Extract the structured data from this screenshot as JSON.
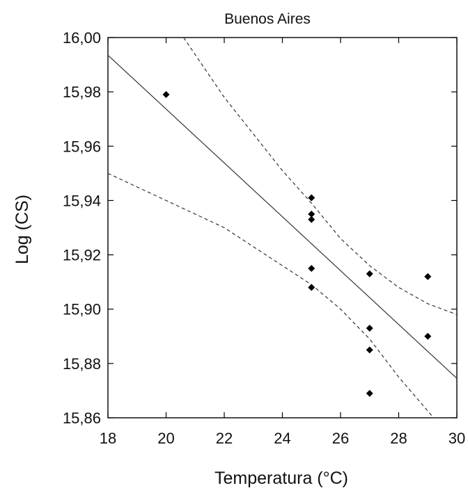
{
  "chart_data": {
    "type": "scatter",
    "title": "Buenos Aires",
    "xlabel": "Temperatura (°C)",
    "ylabel": "Log (CS)",
    "xlim": [
      18,
      30
    ],
    "ylim": [
      15.86,
      16.0
    ],
    "x_ticks": [
      18,
      20,
      22,
      24,
      26,
      28,
      30
    ],
    "x_tick_labels": [
      "18",
      "20",
      "22",
      "24",
      "26",
      "28",
      "30"
    ],
    "y_ticks": [
      15.86,
      15.88,
      15.9,
      15.92,
      15.94,
      15.96,
      15.98,
      16.0
    ],
    "y_tick_labels": [
      "15,86",
      "15,88",
      "15,90",
      "15,92",
      "15,94",
      "15,96",
      "15,98",
      "16,00"
    ],
    "grid": false,
    "points": [
      {
        "x": 20,
        "y": 15.979
      },
      {
        "x": 25,
        "y": 15.941
      },
      {
        "x": 25,
        "y": 15.935
      },
      {
        "x": 25,
        "y": 15.933
      },
      {
        "x": 25,
        "y": 15.915
      },
      {
        "x": 25,
        "y": 15.908
      },
      {
        "x": 27,
        "y": 15.913
      },
      {
        "x": 27,
        "y": 15.893
      },
      {
        "x": 27,
        "y": 15.885
      },
      {
        "x": 27,
        "y": 15.869
      },
      {
        "x": 29,
        "y": 15.912
      },
      {
        "x": 29,
        "y": 15.89
      }
    ],
    "regression": {
      "x": [
        18,
        30
      ],
      "y": [
        15.9935,
        15.8745
      ]
    },
    "confidence_upper": {
      "x": [
        20.6,
        22,
        24,
        25,
        26,
        27,
        28,
        29,
        30
      ],
      "y": [
        16.0,
        15.978,
        15.951,
        15.939,
        15.926,
        15.916,
        15.908,
        15.902,
        15.898
      ]
    },
    "confidence_lower": {
      "x": [
        18,
        20,
        22,
        24,
        25,
        26,
        27,
        28,
        29.2
      ],
      "y": [
        15.95,
        15.94,
        15.93,
        15.916,
        15.909,
        15.9,
        15.889,
        15.875,
        15.86
      ]
    }
  }
}
